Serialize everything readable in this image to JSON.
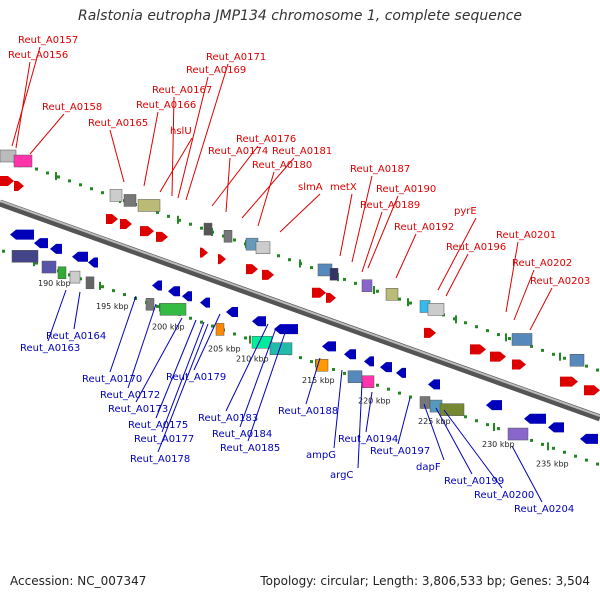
{
  "title": "Ralstonia eutropha JMP134 chromosome 1, complete sequence",
  "footer": {
    "accession": "Accession: NC_007347",
    "summary": "Topology: circular; Length: 3,806,533 bp; Genes: 3,504"
  },
  "colors": {
    "forward": "#dd0000",
    "reverse": "#0000bb",
    "ruler": "#228822",
    "backbone": "#777777"
  },
  "ticks": [
    "190 kbp",
    "195 kbp",
    "200 kbp",
    "205 kbp",
    "210 kbp",
    "215 kbp",
    "220 kbp",
    "225 kbp",
    "230 kbp",
    "235 kbp"
  ],
  "forward_labels": [
    "Reut_A0157",
    "Reut_A0156",
    "Reut_A0158",
    "Reut_A0165",
    "Reut_A0166",
    "hslU",
    "Reut_A0167",
    "Reut_A0169",
    "Reut_A0171",
    "Reut_A0176",
    "Reut_A0174",
    "Reut_A0181",
    "Reut_A0180",
    "slmA",
    "metX",
    "Reut_A0187",
    "Reut_A0190",
    "Reut_A0189",
    "Reut_A0192",
    "pyrE",
    "Reut_A0196",
    "Reut_A0201",
    "Reut_A0202",
    "Reut_A0203"
  ],
  "reverse_labels": [
    "Reut_A0164",
    "Reut_A0163",
    "Reut_A0170",
    "Reut_A0172",
    "Reut_A0173",
    "Reut_A0179",
    "Reut_A0175",
    "Reut_A0177",
    "Reut_A0178",
    "Reut_A0183",
    "Reut_A0184",
    "Reut_A0185",
    "Reut_A0188",
    "ampG",
    "argC",
    "Reut_A0194",
    "Reut_A0197",
    "dapF",
    "Reut_A0199",
    "Reut_A0200",
    "Reut_A0204"
  ]
}
